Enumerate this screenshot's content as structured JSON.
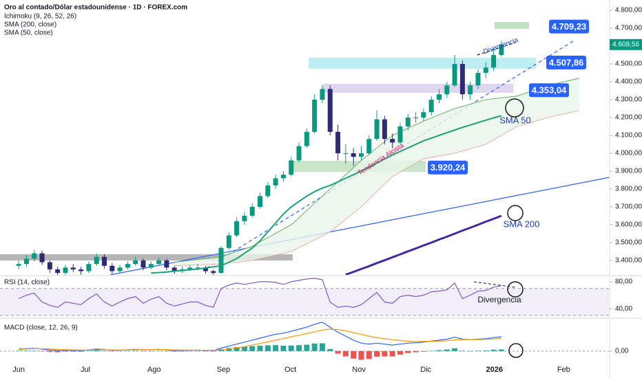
{
  "chart_data": [
    {
      "type": "candlestick",
      "title": "Oro al contado/Dólar estadounidense · 1D · FOREX.com",
      "up_color": "#089981",
      "down_color": "#2e2a73",
      "xlim": [
        -2.4,
        75.9
      ],
      "ylim": [
        3319,
        4858
      ],
      "grid": false,
      "yticks": [
        {
          "value": 3400,
          "label": "3.400,00"
        },
        {
          "value": 3500,
          "label": "3.500,00"
        },
        {
          "value": 3600,
          "label": "3.600,00"
        },
        {
          "value": 3700,
          "label": "3.700,00"
        },
        {
          "value": 3800,
          "label": "3.800,00"
        },
        {
          "value": 3900,
          "label": "3.900,00"
        },
        {
          "value": 4000,
          "label": "4.000,00"
        },
        {
          "value": 4100,
          "label": "4.100,00"
        },
        {
          "value": 4200,
          "label": "4.200,00"
        },
        {
          "value": 4300,
          "label": "4.300,00"
        },
        {
          "value": 4400,
          "label": "4.400,00"
        },
        {
          "value": 4500,
          "label": "4.500,00"
        },
        {
          "value": 4600,
          "label": "4.600,00"
        },
        {
          "value": 4700,
          "label": "4.700,00"
        },
        {
          "value": 4800,
          "label": "4.800,00"
        }
      ],
      "open": [
        3370,
        3380,
        3410,
        3440,
        3390,
        3350,
        3330,
        3360,
        3350,
        3340,
        3380,
        3420,
        3370,
        3340,
        3360,
        3380,
        3400,
        3360,
        3380,
        3400,
        3360,
        3340,
        3350,
        3360,
        3360,
        3340,
        3330,
        3470,
        3540,
        3620,
        3650,
        3700,
        3760,
        3820,
        3860,
        3880,
        3960,
        4040,
        4120,
        4300,
        4360,
        4120,
        4000,
        4000,
        3980,
        4000,
        4080,
        4190,
        4080,
        4060,
        4150,
        4200,
        4200,
        4230,
        4300,
        4330,
        4380,
        4500,
        4330,
        4380,
        4450,
        4480,
        4550
      ],
      "high": [
        3400,
        3430,
        3460,
        3455,
        3400,
        3365,
        3375,
        3380,
        3365,
        3395,
        3440,
        3435,
        3385,
        3375,
        3395,
        3420,
        3410,
        3395,
        3415,
        3410,
        3370,
        3365,
        3375,
        3380,
        3370,
        3350,
        3480,
        3555,
        3640,
        3670,
        3720,
        3780,
        3840,
        3880,
        3900,
        3980,
        4060,
        4140,
        4330,
        4380,
        4380,
        4160,
        4050,
        4030,
        4040,
        4100,
        4240,
        4210,
        4110,
        4170,
        4220,
        4230,
        4250,
        4320,
        4360,
        4400,
        4550,
        4520,
        4400,
        4470,
        4510,
        4580,
        4630
      ],
      "low": [
        3350,
        3365,
        3395,
        3375,
        3330,
        3310,
        3315,
        3335,
        3320,
        3330,
        3370,
        3355,
        3325,
        3330,
        3350,
        3370,
        3345,
        3350,
        3370,
        3345,
        3325,
        3330,
        3340,
        3345,
        3325,
        3315,
        3325,
        3460,
        3530,
        3600,
        3640,
        3690,
        3750,
        3800,
        3840,
        3870,
        3950,
        4030,
        4110,
        4280,
        4100,
        3960,
        3940,
        3930,
        3960,
        3990,
        4070,
        4050,
        4030,
        4050,
        4130,
        4170,
        4180,
        4210,
        4280,
        4310,
        4370,
        4300,
        4300,
        4360,
        4420,
        4460,
        4540
      ],
      "close": [
        3380,
        3410,
        3440,
        3390,
        3350,
        3330,
        3360,
        3350,
        3340,
        3380,
        3420,
        3370,
        3340,
        3360,
        3380,
        3400,
        3360,
        3380,
        3400,
        3360,
        3340,
        3350,
        3360,
        3360,
        3340,
        3330,
        3470,
        3540,
        3620,
        3650,
        3700,
        3760,
        3820,
        3860,
        3880,
        3960,
        4040,
        4120,
        4300,
        4360,
        4120,
        4000,
        4000,
        3980,
        4000,
        4080,
        4190,
        4080,
        4060,
        4150,
        4200,
        4200,
        4230,
        4300,
        4330,
        4380,
        4500,
        4330,
        4380,
        4450,
        4480,
        4550,
        4608.56
      ],
      "cloud": {
        "name": "Ichimoku (9, 26, 52, 26)",
        "color_a": "#43a047",
        "color_b": "#ef9a9a",
        "fill": "#e8f5e9",
        "x": [
          20,
          26,
          30,
          35,
          40,
          44,
          48,
          52,
          56,
          60,
          64,
          68,
          72
        ],
        "span_a": [
          3390,
          3420,
          3480,
          3600,
          3800,
          3960,
          4100,
          4180,
          4250,
          4300,
          4320,
          4380,
          4420
        ],
        "span_b": [
          3370,
          3380,
          3400,
          3450,
          3560,
          3700,
          3870,
          3970,
          4000,
          4050,
          4150,
          4200,
          4240
        ]
      },
      "series": [
        {
          "name": "SMA (200, close)",
          "color": "#4527a0",
          "values": [
            null,
            null,
            null,
            null,
            null,
            null,
            null,
            null,
            null,
            null,
            null,
            null,
            null,
            null,
            null,
            null,
            null,
            null,
            null,
            null,
            null,
            null,
            null,
            null,
            null,
            null,
            null,
            null,
            null,
            null,
            null,
            null,
            null,
            null,
            null,
            null,
            null,
            null,
            null,
            null,
            null,
            null,
            3320,
            3336,
            3352,
            3368,
            3385,
            3401,
            3418,
            3434,
            3451,
            3467,
            3484,
            3500,
            3517,
            3533,
            3550,
            3567,
            3583,
            3600,
            3617,
            3633,
            3650
          ]
        },
        {
          "name": "SMA (50, close)",
          "color": "#1aa079",
          "values": [
            null,
            null,
            null,
            null,
            null,
            null,
            null,
            null,
            null,
            null,
            null,
            null,
            null,
            null,
            null,
            null,
            null,
            3330,
            3332,
            3335,
            3340,
            3344,
            3348,
            3352,
            3358,
            3364,
            3370,
            3390,
            3410,
            3440,
            3470,
            3510,
            3560,
            3610,
            3660,
            3700,
            3730,
            3760,
            3785,
            3805,
            3820,
            3840,
            3860,
            3880,
            3900,
            3922,
            3945,
            3968,
            3990,
            4010,
            4030,
            4050,
            4070,
            4085,
            4100,
            4115,
            4130,
            4145,
            4158,
            4172,
            4185,
            4198,
            4210
          ]
        }
      ],
      "last_price": {
        "value": 4608.56,
        "label": "4.608,56"
      },
      "price_labels": [
        {
          "value": 4709.23,
          "label": "4.709,23"
        },
        {
          "value": 4507.86,
          "label": "4.507,86"
        },
        {
          "value": 4353.04,
          "label": "4.353,04"
        },
        {
          "value": 3920.24,
          "label": "3.920,24"
        }
      ],
      "annotations": [
        "Divergencia",
        "Tendencia Alcista",
        "SMA 50",
        "SMA 200"
      ]
    },
    {
      "type": "line",
      "title": "RSI (14, close)",
      "xlim": [
        -2.4,
        75.9
      ],
      "ylim": [
        27,
        88
      ],
      "yticks": [
        {
          "value": 80,
          "label": "80,00"
        },
        {
          "value": 40,
          "label": "40,00"
        }
      ],
      "band": [
        30,
        70
      ],
      "series": [
        {
          "color": "#7e57c2",
          "values": [
            55,
            60,
            63,
            50,
            45,
            42,
            50,
            48,
            46,
            55,
            62,
            50,
            44,
            50,
            55,
            58,
            48,
            54,
            58,
            48,
            44,
            47,
            50,
            50,
            45,
            42,
            70,
            75,
            78,
            76,
            78,
            80,
            80,
            79,
            76,
            80,
            82,
            84,
            85,
            83,
            50,
            42,
            44,
            42,
            46,
            55,
            64,
            50,
            48,
            58,
            60,
            58,
            60,
            65,
            66,
            68,
            78,
            55,
            60,
            66,
            67,
            72,
            74
          ]
        }
      ],
      "annotations": [
        "Divergencia"
      ]
    },
    {
      "type": "line",
      "title": "MACD (close, 12, 26, 9)",
      "xlim": [
        -2.4,
        75.9
      ],
      "ylim": [
        -56,
        162
      ],
      "yticks": [
        {
          "value": 0,
          "label": "0,00"
        }
      ],
      "xticks": [
        {
          "value": 0,
          "label": "Jun"
        },
        {
          "value": 8.57,
          "label": "Jul"
        },
        {
          "value": 17.4,
          "label": "Ago"
        },
        {
          "value": 26.3,
          "label": "Sep"
        },
        {
          "value": 34.9,
          "label": "Oct"
        },
        {
          "value": 43.7,
          "label": "Nov"
        },
        {
          "value": 52.3,
          "label": "Dic"
        },
        {
          "value": 61.1,
          "label": "2026"
        },
        {
          "value": 70,
          "label": "Feb"
        }
      ],
      "histogram": {
        "up_color": "#26a69a",
        "down_color": "#ef5350",
        "values": [
          2,
          2,
          2,
          -2,
          -5,
          -6,
          -3,
          -3,
          -3,
          1,
          4,
          1,
          -2,
          -1,
          1,
          2,
          -1,
          0,
          1,
          -1,
          -3,
          -2,
          -1,
          0,
          -1,
          -2,
          9,
          15,
          20,
          23,
          25,
          27,
          29,
          30,
          27,
          28,
          30,
          32,
          38,
          39,
          10,
          -13,
          -27,
          -38,
          -44,
          -40,
          -28,
          -27,
          -27,
          -18,
          -10,
          -6,
          -3,
          1,
          5,
          8,
          14,
          2,
          0,
          2,
          3,
          7,
          8
        ]
      },
      "series": [
        {
          "color": "#2962ff",
          "values": [
            10,
            12,
            14,
            10,
            5,
            2,
            4,
            3,
            2,
            6,
            10,
            8,
            4,
            5,
            7,
            9,
            6,
            7,
            9,
            6,
            3,
            3,
            4,
            5,
            3,
            2,
            15,
            25,
            35,
            45,
            55,
            65,
            75,
            85,
            90,
            100,
            110,
            120,
            135,
            145,
            120,
            95,
            75,
            55,
            40,
            35,
            40,
            35,
            30,
            35,
            40,
            42,
            45,
            50,
            55,
            60,
            70,
            60,
            58,
            60,
            62,
            68,
            72
          ]
        },
        {
          "color": "#ff9800",
          "values": [
            8,
            10,
            12,
            12,
            10,
            8,
            7,
            6,
            5,
            5,
            6,
            7,
            6,
            6,
            6,
            7,
            7,
            7,
            8,
            7,
            6,
            5,
            5,
            5,
            4,
            4,
            6,
            10,
            15,
            22,
            30,
            38,
            46,
            55,
            63,
            72,
            80,
            88,
            97,
            106,
            110,
            108,
            102,
            93,
            84,
            75,
            68,
            62,
            57,
            53,
            50,
            48,
            48,
            49,
            50,
            52,
            56,
            58,
            58,
            58,
            59,
            61,
            64
          ]
        }
      ]
    }
  ]
}
